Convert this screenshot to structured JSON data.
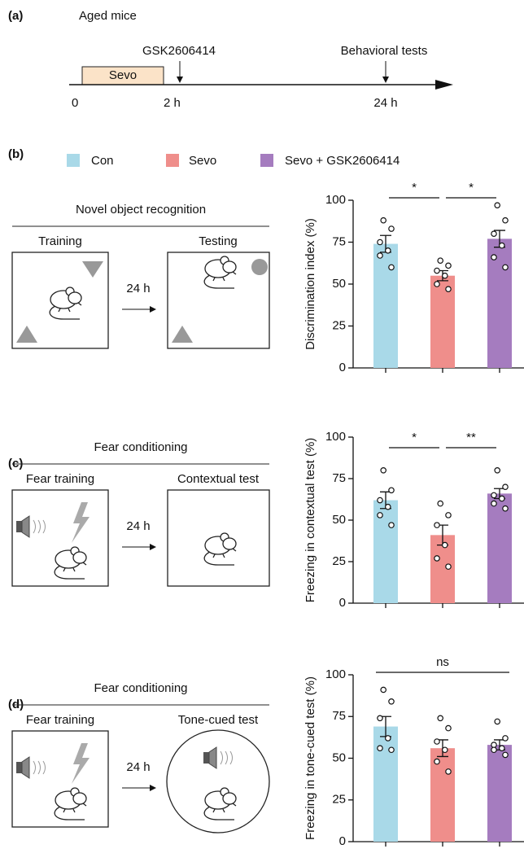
{
  "panel_a": {
    "label": "(a)",
    "title": "Aged mice",
    "sevo": "Sevo",
    "drug": "GSK2606414",
    "tests": "Behavioral tests",
    "t0": "0",
    "t2": "2 h",
    "t24": "24 h"
  },
  "legend": {
    "label": "(b)",
    "items": [
      {
        "name": "Con",
        "color": "#a9d9e8"
      },
      {
        "name": "Sevo",
        "color": "#ef8e8b"
      },
      {
        "name": "Sevo + GSK2606414",
        "color": "#a57cbf"
      }
    ]
  },
  "diagrams": [
    {
      "title": "Novel object recognition",
      "left": "Training",
      "right": "Testing",
      "delay": "24 h"
    },
    {
      "label": "(c)",
      "title": "Fear conditioning",
      "left": "Fear training",
      "right": "Contextual test",
      "delay": "24 h"
    },
    {
      "label": "(d)",
      "title": "Fear conditioning",
      "left": "Fear training",
      "right": "Tone-cued test",
      "delay": "24 h"
    }
  ],
  "chart_data": [
    {
      "type": "bar",
      "ylabel": "Discrimination index (%)",
      "values": [
        74,
        55,
        77
      ],
      "errors": [
        5,
        3,
        5
      ],
      "points": [
        [
          88,
          83,
          75,
          70,
          67,
          60
        ],
        [
          64,
          61,
          58,
          55,
          50,
          47
        ],
        [
          97,
          88,
          80,
          73,
          66,
          60
        ]
      ],
      "ylim": [
        0,
        100
      ],
      "yticks": [
        0,
        25,
        50,
        75,
        100
      ],
      "significance": [
        {
          "label": "*",
          "from": 0,
          "to": 1
        },
        {
          "label": "*",
          "from": 1,
          "to": 2
        }
      ]
    },
    {
      "type": "bar",
      "ylabel": "Freezing in contextual test (%)",
      "values": [
        62,
        41,
        66
      ],
      "errors": [
        5,
        6,
        3
      ],
      "points": [
        [
          80,
          68,
          62,
          58,
          53,
          47
        ],
        [
          60,
          53,
          47,
          35,
          27,
          22
        ],
        [
          80,
          70,
          65,
          63,
          60,
          57
        ]
      ],
      "ylim": [
        0,
        100
      ],
      "yticks": [
        0,
        25,
        50,
        75,
        100
      ],
      "significance": [
        {
          "label": "*",
          "from": 0,
          "to": 1
        },
        {
          "label": "**",
          "from": 1,
          "to": 2
        }
      ]
    },
    {
      "type": "bar",
      "ylabel": "Freezing in tone-cued test (%)",
      "values": [
        69,
        56,
        58
      ],
      "errors": [
        6,
        5,
        3
      ],
      "points": [
        [
          91,
          84,
          74,
          62,
          56,
          55
        ],
        [
          74,
          68,
          60,
          55,
          48,
          42
        ],
        [
          72,
          62,
          58,
          56,
          55,
          52
        ]
      ],
      "ylim": [
        0,
        100
      ],
      "yticks": [
        0,
        25,
        50,
        75,
        100
      ],
      "significance": [
        {
          "label": "ns",
          "from": 0,
          "to": 2
        }
      ]
    }
  ]
}
